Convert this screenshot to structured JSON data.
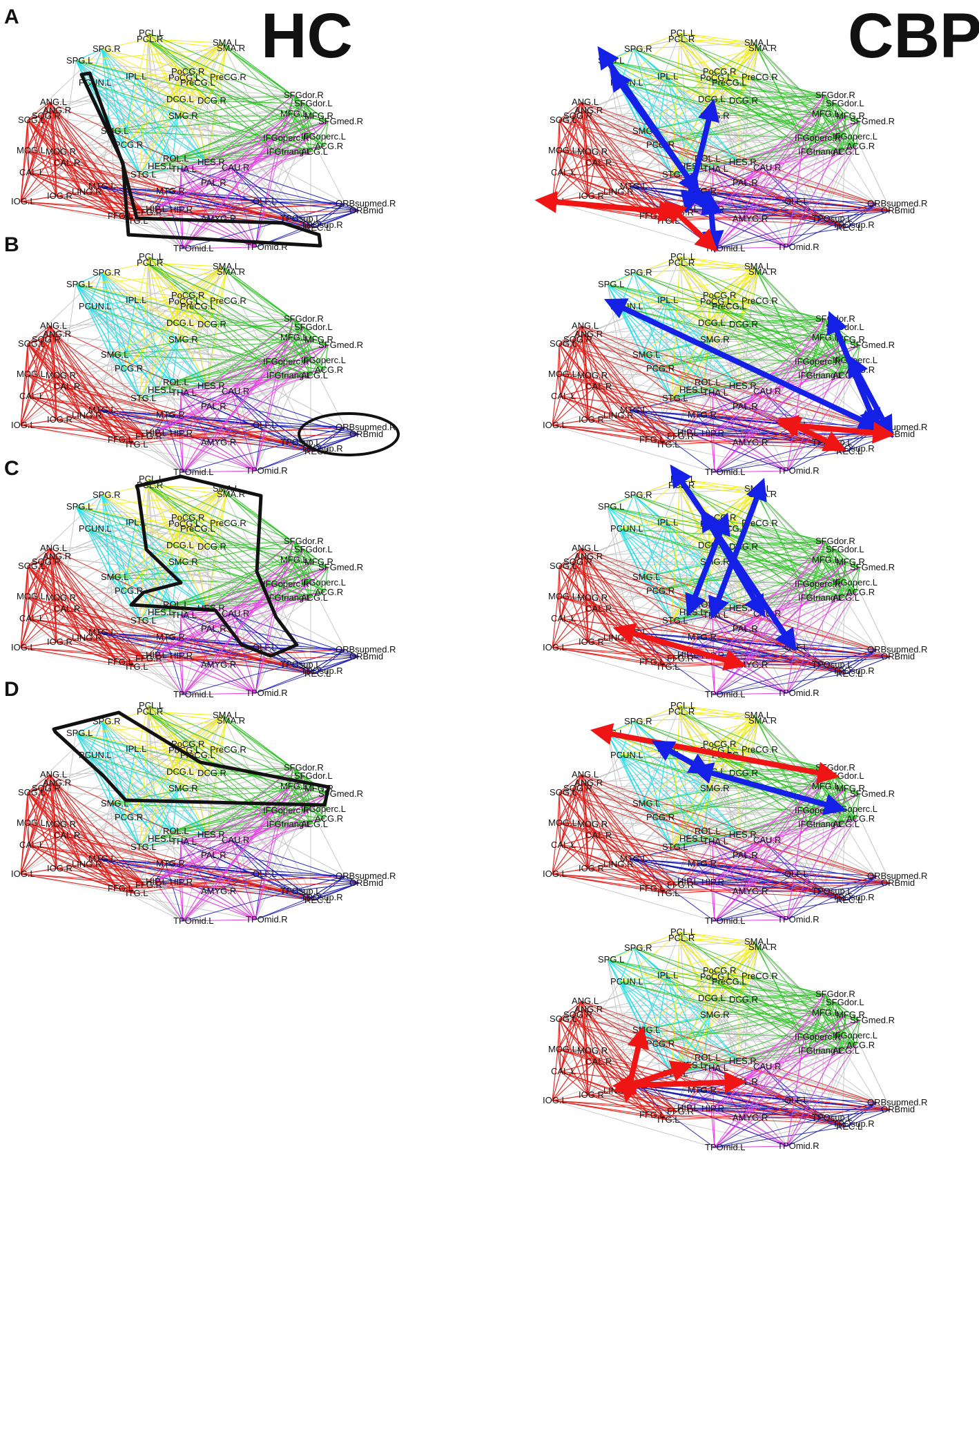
{
  "titles": {
    "hc": "HC",
    "cbp": "CBP"
  },
  "row_labels": [
    "A",
    "B",
    "C",
    "D"
  ],
  "modules": {
    "red": {
      "color": "#e0201c"
    },
    "yellow": {
      "color": "#f2ee1c"
    },
    "cyan": {
      "color": "#27e0e8"
    },
    "green": {
      "color": "#33c22a"
    },
    "magenta": {
      "color": "#e53de5"
    },
    "navy": {
      "color": "#1a1ab8"
    },
    "gray": {
      "color": "#c4c4c4"
    }
  },
  "arrow_colors": {
    "increase": "#f01515",
    "decrease": "#1520e6"
  },
  "outline_color": "#111111",
  "node_labels_standard": {
    "PCL.L": "PCL.L",
    "PCL.R": "PCL.R",
    "SMA.L": "SMA.L",
    "SMA.R": "SMA.R",
    "SPG.R": "SPG.R",
    "SPG.L": "SPG.L",
    "PoCG.R": "PoCG.R",
    "PoCG.L": "PoCG.L",
    "PreCG.R": "PreCG.R",
    "PreCG.L": "PreCG.L",
    "IPL.L": "IPL.L",
    "PCUN.L": "PCUN.L",
    "ANG.L": "ANG.L",
    "ANG.R": "ANG.R",
    "SOG.L": "SOG.L",
    "SOG.R": "SOG.R",
    "MOG.L": "MOG.L",
    "MOG.R": "MOG.R",
    "CAL.L": "CAL.L",
    "CAL.R": "CAL.R",
    "IOG.L": "IOG.L",
    "IOG.R": "IOG.R",
    "LING.R": "LING.R",
    "FFG.L": "FFG.L",
    "FFG.R": "FFG.R",
    "ITG.L": "ITG.L",
    "DCG.L": "DCG.L",
    "DCG.R": "DCG.R",
    "SMG.L": "SMG.L",
    "SMG.R": "SMG.R",
    "PCG.R": "PCG.R",
    "SFGdor.R": "SFGdor.R",
    "SFGdor.L": "SFGdor.L",
    "MFG.L": "MFG.L",
    "MFG.R": "MFG.R",
    "SFGmed.R": "SFGmed.R",
    "IFGoperc.R": "IFGoperc.R",
    "IFGoperc.L": "IFGoperc.L",
    "IFGtriang.L": "IFGtriang.L",
    "ACG.L": "ACG.L",
    "ACG.R": "ACG.R",
    "ROL.L": "ROL.L",
    "HES.R": "HES.R",
    "HES.L": "HES.L",
    "STG.L": "STG.L",
    "THA.L": "THA.L",
    "CAU.R": "CAU.R",
    "MTG.L": "MTG.L",
    "MTG.R": "MTG.R",
    "PAL.R": "PAL.R",
    "HIP.L": "HIP.L",
    "HIP.R": "HIP.R",
    "OLF.L": "OLF.L",
    "AMYG.R": "AMYG.R",
    "TPOsup.L": "TPOsup.L",
    "TPOsup.R": "TPOsup.R",
    "REC.L": "REC.L",
    "ORBsupmed.R": "ORBsupmed.R",
    "ORBmid": "ORBmid",
    "TPOmid.L": "TPOmid.L",
    "TPOmid.R": "TPOmid.R"
  }
}
